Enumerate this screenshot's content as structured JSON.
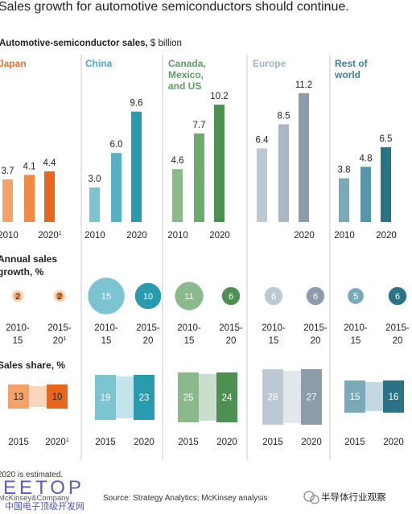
{
  "title": "Sales growth for automotive semiconductors should continue.",
  "subtitle_bold": "Automotive-semiconductor sales,",
  "subtitle_unit": " $ billion",
  "growth_label": [
    "Annual sales",
    "growth, %"
  ],
  "share_label": "Sales share, %",
  "footnote": "2020 is estimated.",
  "source": "Source: Strategy Analytics; McKinsey analysis",
  "publisher": "McKinsey&Company",
  "watermark_left": "EETOP",
  "watermark_left_sub": "中国电子顶级开发网",
  "watermark_right": "半导体行业观察",
  "chart_data": {
    "type": "bar",
    "unit": "$ billion",
    "regions": [
      {
        "name": [
          "Japan"
        ],
        "color": "#e8742a",
        "bar_colors": [
          "#f3a36a",
          "#ee8a46",
          "#e9661e"
        ],
        "bars": [
          {
            "label": "2010",
            "value": 3.7
          },
          {
            "label": "",
            "value": 4.1
          },
          {
            "label": "2020",
            "sup": "1",
            "value": 4.4
          }
        ],
        "growth": [
          {
            "period": [
              "2010-",
              "15"
            ],
            "value": 2
          },
          {
            "period": [
              "2015-",
              "20"
            ],
            "sup": "1",
            "value": 2
          }
        ],
        "share": [
          {
            "year": "2015",
            "value": 13
          },
          {
            "year": "2020",
            "sup": "1",
            "value": 10
          }
        ],
        "growth_fill": "#ec8a44"
      },
      {
        "name": [
          "China"
        ],
        "color": "#4aa9bf",
        "bar_colors": [
          "#7cc4d2",
          "#56b1c5",
          "#2b9aaf"
        ],
        "bars": [
          {
            "label": "2010",
            "value": 3.0
          },
          {
            "label": "",
            "value": 6.0
          },
          {
            "label": "2020",
            "value": 9.6
          }
        ],
        "growth": [
          {
            "period": [
              "2010-",
              "15"
            ],
            "value": 15
          },
          {
            "period": [
              "2015-",
              "20"
            ],
            "value": 10
          }
        ],
        "share": [
          {
            "year": "2015",
            "value": 19
          },
          {
            "year": "2020",
            "value": 23
          }
        ],
        "growth_fill": "#2b9aaf"
      },
      {
        "name": [
          "Canada,",
          "Mexico,",
          "and US"
        ],
        "color": "#5e9b61",
        "bar_colors": [
          "#8ab98b",
          "#6caa6e",
          "#4e8f52"
        ],
        "bars": [
          {
            "label": "2010",
            "value": 4.6
          },
          {
            "label": "",
            "value": 7.7
          },
          {
            "label": "2020",
            "value": 10.2
          }
        ],
        "growth": [
          {
            "period": [
              "2010-",
              "15"
            ],
            "value": 11
          },
          {
            "period": [
              "2015-",
              "20"
            ],
            "value": 6
          }
        ],
        "share": [
          {
            "year": "2015",
            "value": 25
          },
          {
            "year": "2020",
            "value": 24
          }
        ],
        "growth_fill": "#4e8f52"
      },
      {
        "name": [
          "Europe"
        ],
        "color": "#9fb0c0",
        "bar_colors": [
          "#bcc9d3",
          "#a9b7c3",
          "#8c9caa"
        ],
        "bars": [
          {
            "label": "",
            "value": 6.4
          },
          {
            "label": "",
            "value": 8.5
          },
          {
            "label": "2020",
            "value": 11.2
          }
        ],
        "growth": [
          {
            "period": [
              "2010-",
              "15"
            ],
            "value": 6
          },
          {
            "period": [
              "2015-",
              "20"
            ],
            "value": 6
          }
        ],
        "share": [
          {
            "year": "2015",
            "value": 28
          },
          {
            "year": "2020",
            "value": 27
          }
        ],
        "growth_fill": "#8c9caa"
      },
      {
        "name": [
          "Rest of",
          "world"
        ],
        "color": "#3b8196",
        "bar_colors": [
          "#7aaab8",
          "#5796a8",
          "#2a7387"
        ],
        "bars": [
          {
            "label": "2010",
            "value": 3.8
          },
          {
            "label": "",
            "value": 4.8
          },
          {
            "label": "2020",
            "value": 6.5
          }
        ],
        "growth": [
          {
            "period": [
              "2010-",
              "15"
            ],
            "value": 5
          },
          {
            "period": [
              "2015-",
              "20"
            ],
            "value": 6
          }
        ],
        "share": [
          {
            "year": "2015",
            "value": 15
          },
          {
            "year": "2020",
            "value": 16
          }
        ],
        "growth_fill": "#2a7387"
      }
    ]
  }
}
